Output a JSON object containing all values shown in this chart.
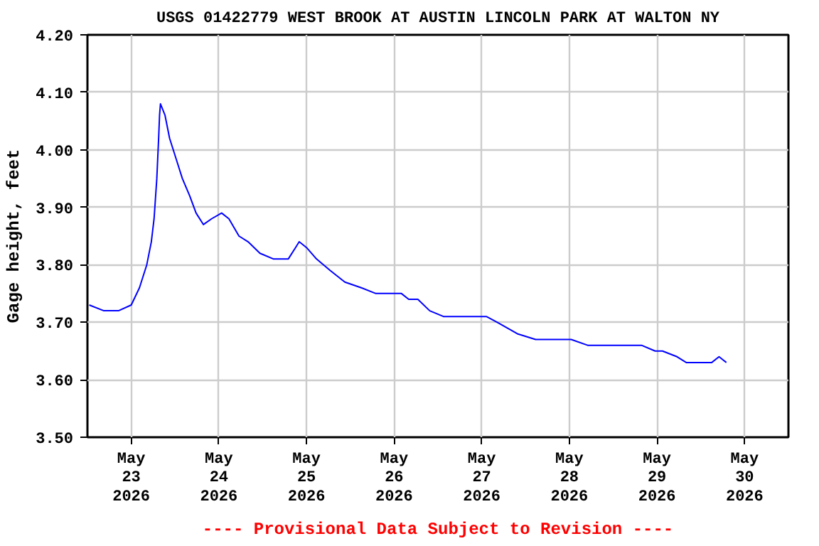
{
  "chart_data": {
    "type": "line",
    "title": "USGS 01422779 WEST BROOK AT AUSTIN LINCOLN PARK AT WALTON NY",
    "ylabel": "Gage height, feet",
    "annotations": [
      "---- Provisional Data Subject to Revision ----"
    ],
    "series": [
      {
        "color": "#0000ff",
        "x": [
          "2026-05-22T12:30",
          "2026-05-22T16:30",
          "2026-05-22T20:30",
          "2026-05-23T00:00",
          "2026-05-23T02:15",
          "2026-05-23T04:15",
          "2026-05-23T05:30",
          "2026-05-23T06:15",
          "2026-05-23T07:00",
          "2026-05-23T07:30",
          "2026-05-23T07:45",
          "2026-05-23T08:00",
          "2026-05-23T09:15",
          "2026-05-23T10:30",
          "2026-05-23T12:00",
          "2026-05-23T14:00",
          "2026-05-23T16:00",
          "2026-05-23T17:45",
          "2026-05-23T19:45",
          "2026-05-23T22:00",
          "2026-05-24T00:45",
          "2026-05-24T02:45",
          "2026-05-24T05:30",
          "2026-05-24T08:00",
          "2026-05-24T11:15",
          "2026-05-24T15:00",
          "2026-05-24T19:00",
          "2026-05-24T21:00",
          "2026-05-24T22:00",
          "2026-05-25T00:00",
          "2026-05-25T02:45",
          "2026-05-25T06:30",
          "2026-05-25T10:30",
          "2026-05-25T15:00",
          "2026-05-25T19:00",
          "2026-05-26T02:00",
          "2026-05-26T04:00",
          "2026-05-26T06:30",
          "2026-05-26T09:45",
          "2026-05-26T13:30",
          "2026-05-27T01:15",
          "2026-05-27T04:15",
          "2026-05-27T07:00",
          "2026-05-27T09:45",
          "2026-05-27T14:45",
          "2026-05-28T00:30",
          "2026-05-28T05:00",
          "2026-05-28T12:00",
          "2026-05-28T19:45",
          "2026-05-28T23:30",
          "2026-05-29T01:30",
          "2026-05-29T05:30",
          "2026-05-29T08:00",
          "2026-05-29T15:00",
          "2026-05-29T17:00",
          "2026-05-29T19:00"
        ],
        "values": [
          3.73,
          3.72,
          3.72,
          3.73,
          3.76,
          3.8,
          3.84,
          3.88,
          3.95,
          4.02,
          4.06,
          4.08,
          4.06,
          4.02,
          3.99,
          3.95,
          3.92,
          3.89,
          3.87,
          3.88,
          3.89,
          3.88,
          3.85,
          3.84,
          3.82,
          3.81,
          3.81,
          3.83,
          3.84,
          3.83,
          3.81,
          3.79,
          3.77,
          3.76,
          3.75,
          3.75,
          3.74,
          3.74,
          3.72,
          3.71,
          3.71,
          3.7,
          3.69,
          3.68,
          3.67,
          3.67,
          3.66,
          3.66,
          3.66,
          3.65,
          3.65,
          3.64,
          3.63,
          3.63,
          3.64,
          3.63
        ]
      }
    ],
    "xlim": [
      "2026-05-22T12:00",
      "2026-05-30T12:00"
    ],
    "xticks": [
      {
        "value": "2026-05-23",
        "label": "May\n23\n2026"
      },
      {
        "value": "2026-05-24",
        "label": "May\n24\n2026"
      },
      {
        "value": "2026-05-25",
        "label": "May\n25\n2026"
      },
      {
        "value": "2026-05-26",
        "label": "May\n26\n2026"
      },
      {
        "value": "2026-05-27",
        "label": "May\n27\n2026"
      },
      {
        "value": "2026-05-28",
        "label": "May\n28\n2026"
      },
      {
        "value": "2026-05-29",
        "label": "May\n29\n2026"
      },
      {
        "value": "2026-05-30",
        "label": "May\n30\n2026"
      }
    ],
    "ylim": [
      3.5,
      4.2
    ],
    "yticks": [
      {
        "value": 3.5,
        "label": "3.50"
      },
      {
        "value": 3.6,
        "label": "3.60"
      },
      {
        "value": 3.7,
        "label": "3.70"
      },
      {
        "value": 3.8,
        "label": "3.80"
      },
      {
        "value": 3.9,
        "label": "3.90"
      },
      {
        "value": 4.0,
        "label": "4.00"
      },
      {
        "value": 4.1,
        "label": "4.10"
      },
      {
        "value": 4.2,
        "label": "4.20"
      }
    ],
    "grid": true,
    "line_style": "solid"
  }
}
